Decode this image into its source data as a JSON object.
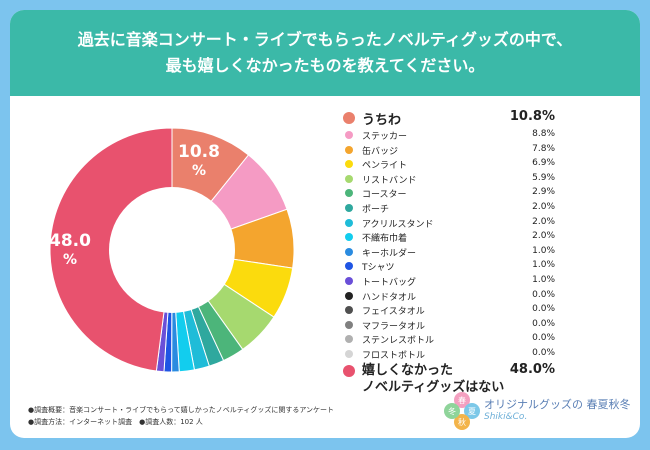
{
  "header": {
    "line1": "過去に音楽コンサート・ライブでもらったノベルティグッズの中で、",
    "line2": "最も嬉しくなかったものを教えてください。"
  },
  "chart_data": {
    "type": "pie",
    "title": "過去に音楽コンサート・ライブでもらったノベルティグッズの中で、最も嬉しくなかったものを教えてください。",
    "categories": [
      "うちわ",
      "ステッカー",
      "缶バッジ",
      "ペンライト",
      "リストバンド",
      "コースター",
      "ポーチ",
      "アクリルスタンド",
      "不織布巾着",
      "キーホルダー",
      "Tシャツ",
      "トートバッグ",
      "ハンドタオル",
      "フェイスタオル",
      "マフラータオル",
      "ステンレスボトル",
      "フロストボトル",
      "嬉しくなかったノベルティグッズはない"
    ],
    "values": [
      10.8,
      8.8,
      7.8,
      6.9,
      5.9,
      2.9,
      2.0,
      2.0,
      2.0,
      1.0,
      1.0,
      1.0,
      0.0,
      0.0,
      0.0,
      0.0,
      0.0,
      48.0
    ],
    "value_labels": [
      "10.8%",
      "8.8%",
      "7.8%",
      "6.9%",
      "5.9%",
      "2.9%",
      "2.0%",
      "2.0%",
      "2.0%",
      "1.0%",
      "1.0%",
      "1.0%",
      "0.0%",
      "0.0%",
      "0.0%",
      "0.0%",
      "0.0%",
      "48.0%"
    ],
    "colors": [
      "#ea806c",
      "#f59bc4",
      "#f4a52e",
      "#fbdb0d",
      "#a6d96f",
      "#4cb57a",
      "#2fa89e",
      "#1fbcd8",
      "#12cdee",
      "#2a8be0",
      "#1f55e4",
      "#6a4fd8",
      "#222222",
      "#505050",
      "#808080",
      "#b0b0b0",
      "#d5d5d5",
      "#e8526e"
    ],
    "slice_labels": [
      {
        "value": "10.8",
        "unit": "%"
      },
      {
        "value": "48.0",
        "unit": "%"
      }
    ],
    "legend": "right"
  },
  "notes": {
    "line1": "●調査概要：音楽コンサート・ライブでもらって嬉しかったノベルティグッズに関するアンケート",
    "line2": "●調査方法：インターネット調査　●調査人数：102 人"
  },
  "brand": {
    "title": "オリジナルグッズの 春夏秋冬",
    "sub": "Shiki&Co.",
    "badge_chars": [
      "春",
      "夏",
      "秋",
      "冬"
    ]
  }
}
